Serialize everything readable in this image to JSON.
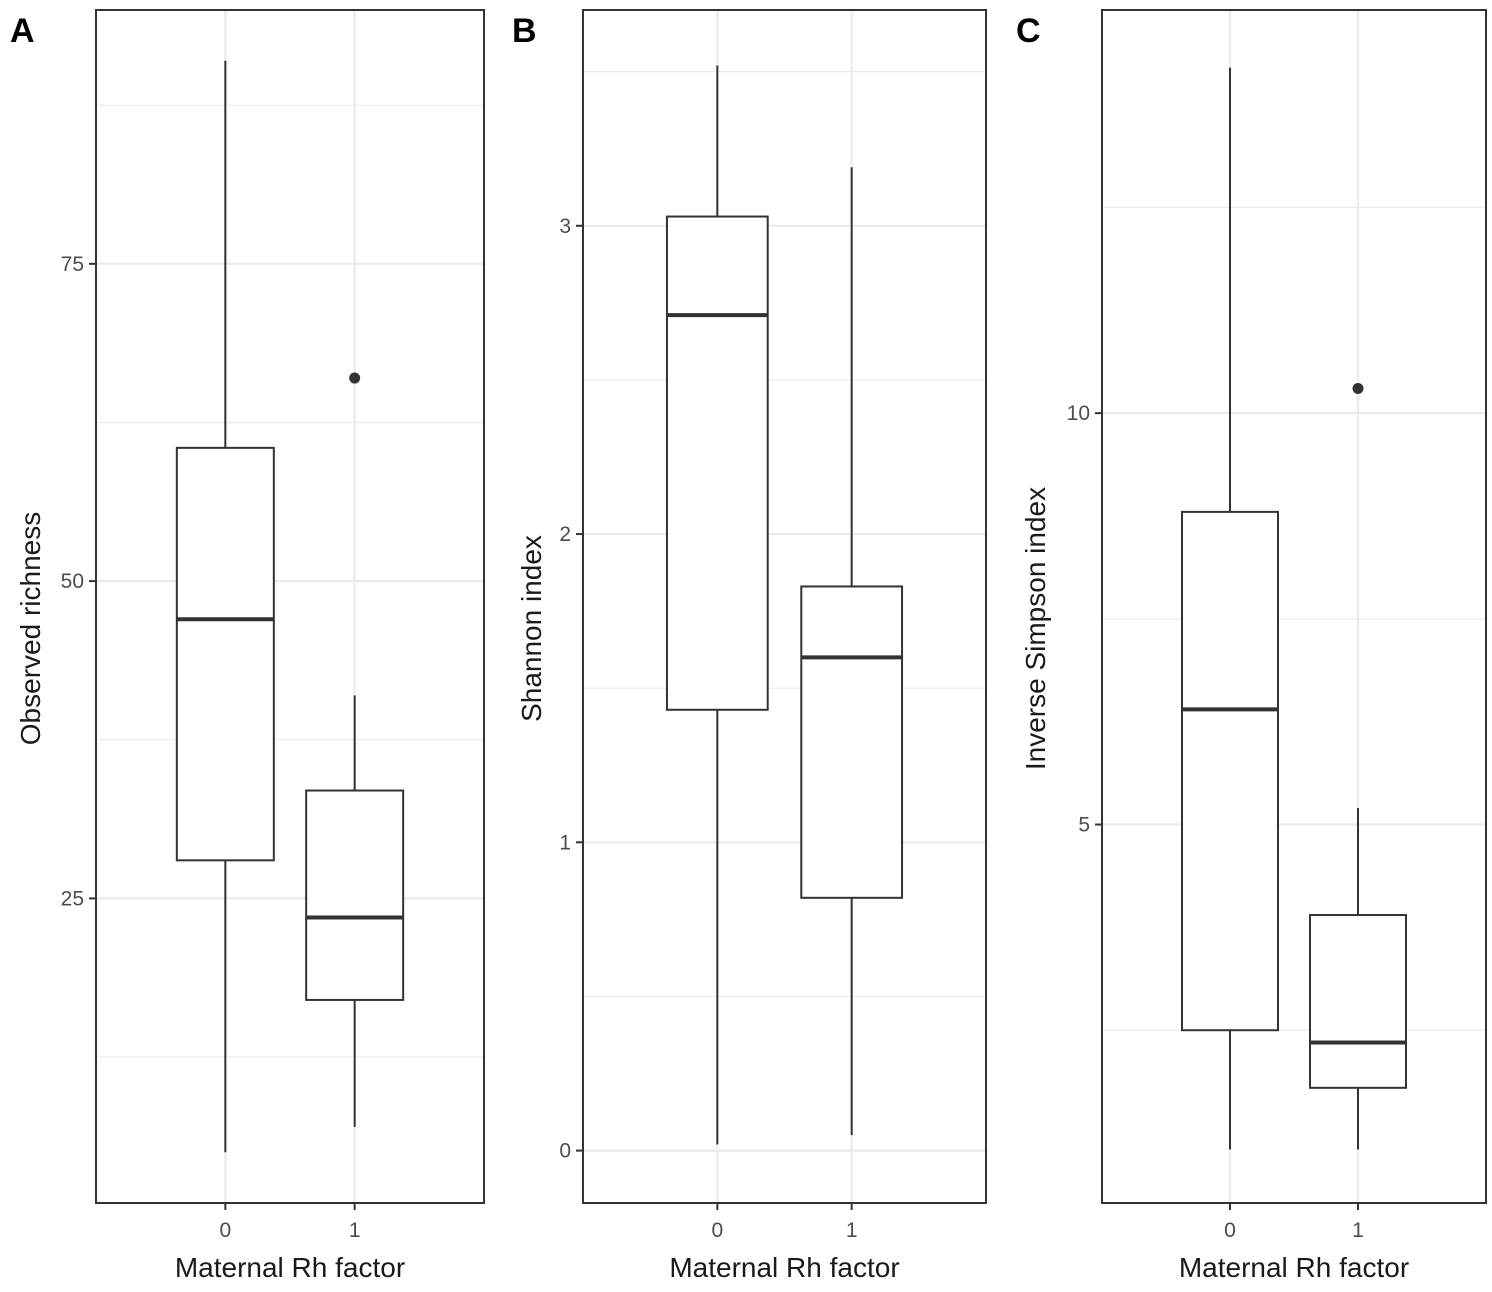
{
  "chart_data": [
    {
      "type": "boxplot",
      "panel_label": "A",
      "xlabel": "Maternal Rh factor",
      "ylabel": "Observed richness",
      "categories": [
        "0",
        "1"
      ],
      "yticks": [
        25,
        50,
        75
      ],
      "ylim": [
        1,
        95
      ],
      "boxes": [
        {
          "category": "0",
          "min": 5,
          "q1": 28,
          "median": 47,
          "q3": 60.5,
          "max": 91,
          "outliers": []
        },
        {
          "category": "1",
          "min": 7,
          "q1": 17,
          "median": 23.5,
          "q3": 33.5,
          "max": 41,
          "outliers": [
            66
          ]
        }
      ],
      "grid": true
    },
    {
      "type": "boxplot",
      "panel_label": "B",
      "xlabel": "Maternal Rh factor",
      "ylabel": "Shannon index",
      "categories": [
        "0",
        "1"
      ],
      "yticks": [
        0,
        1,
        2,
        3
      ],
      "ylim": [
        -0.17,
        3.7
      ],
      "boxes": [
        {
          "category": "0",
          "min": 0.02,
          "q1": 1.43,
          "median": 2.71,
          "q3": 3.03,
          "max": 3.52,
          "outliers": []
        },
        {
          "category": "1",
          "min": 0.05,
          "q1": 0.82,
          "median": 1.6,
          "q3": 1.83,
          "max": 3.19,
          "outliers": []
        }
      ],
      "grid": true
    },
    {
      "type": "boxplot",
      "panel_label": "C",
      "xlabel": "Maternal Rh factor",
      "ylabel": "Inverse Simpson index",
      "categories": [
        "0",
        "1"
      ],
      "yticks": [
        5,
        10
      ],
      "ylim": [
        0.4,
        14.9
      ],
      "boxes": [
        {
          "category": "0",
          "min": 1.05,
          "q1": 2.5,
          "median": 6.4,
          "q3": 8.8,
          "max": 14.2,
          "outliers": []
        },
        {
          "category": "1",
          "min": 1.05,
          "q1": 1.8,
          "median": 2.35,
          "q3": 3.9,
          "max": 5.2,
          "outliers": [
            10.3
          ]
        }
      ],
      "grid": true
    }
  ]
}
